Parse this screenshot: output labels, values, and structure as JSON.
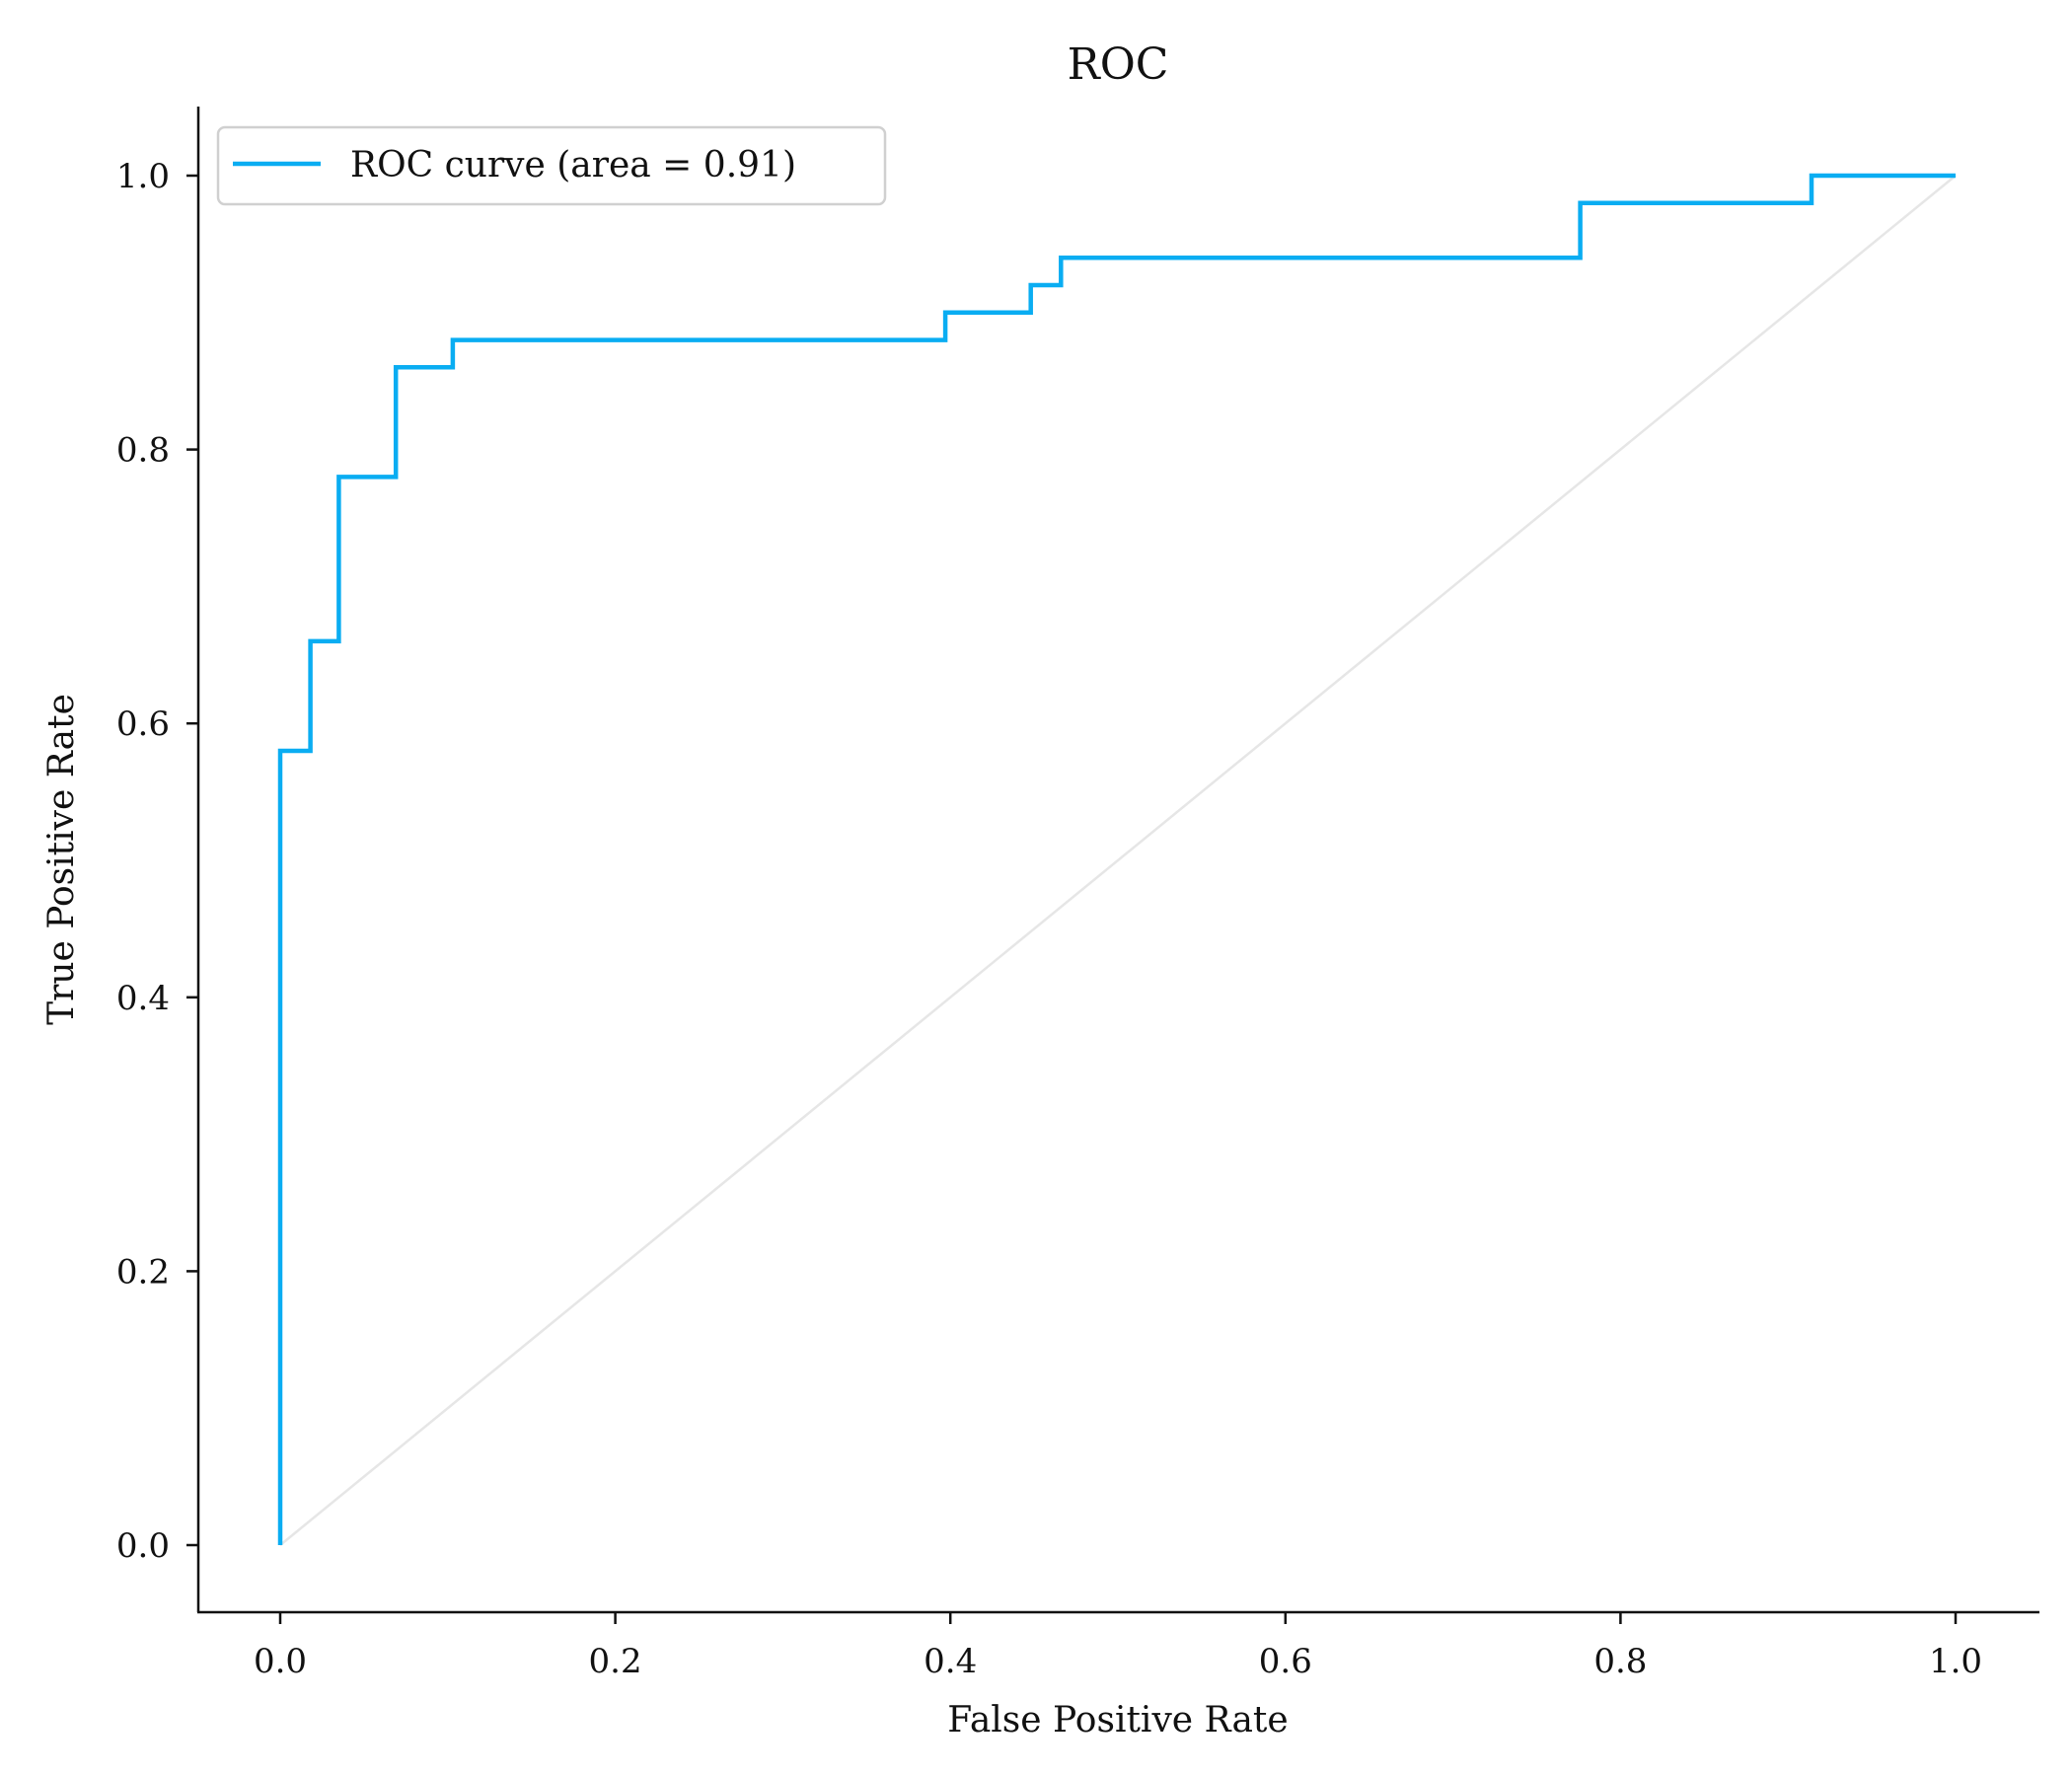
{
  "chart_data": {
    "type": "line",
    "title": "ROC",
    "xlabel": "False Positive Rate",
    "ylabel": "True Positive Rate",
    "xlim": [
      -0.05,
      1.05
    ],
    "ylim": [
      -0.05,
      1.05
    ],
    "xticks": [
      0.0,
      0.2,
      0.4,
      0.6,
      0.8,
      1.0
    ],
    "yticks": [
      0.0,
      0.2,
      0.4,
      0.6,
      0.8,
      1.0
    ],
    "xtick_labels": [
      "0.0",
      "0.2",
      "0.4",
      "0.6",
      "0.8",
      "1.0"
    ],
    "ytick_labels": [
      "0.0",
      "0.2",
      "0.4",
      "0.6",
      "0.8",
      "1.0"
    ],
    "grid": false,
    "legend_position": "upper left",
    "series": [
      {
        "name": "ROC curve (area = 0.91)",
        "color": "#0aadf2",
        "step": true,
        "x": [
          0.0,
          0.0,
          0.018,
          0.018,
          0.035,
          0.035,
          0.069,
          0.069,
          0.103,
          0.103,
          0.397,
          0.397,
          0.448,
          0.448,
          0.466,
          0.466,
          0.776,
          0.776,
          0.914,
          0.914,
          1.0
        ],
        "y": [
          0.0,
          0.58,
          0.58,
          0.66,
          0.66,
          0.78,
          0.78,
          0.86,
          0.86,
          0.88,
          0.88,
          0.9,
          0.9,
          0.92,
          0.92,
          0.94,
          0.94,
          0.98,
          0.98,
          1.0,
          1.0
        ]
      },
      {
        "color": "#e6e6e6",
        "x": [
          0.0,
          1.0
        ],
        "y": [
          0.0,
          1.0
        ]
      }
    ]
  }
}
